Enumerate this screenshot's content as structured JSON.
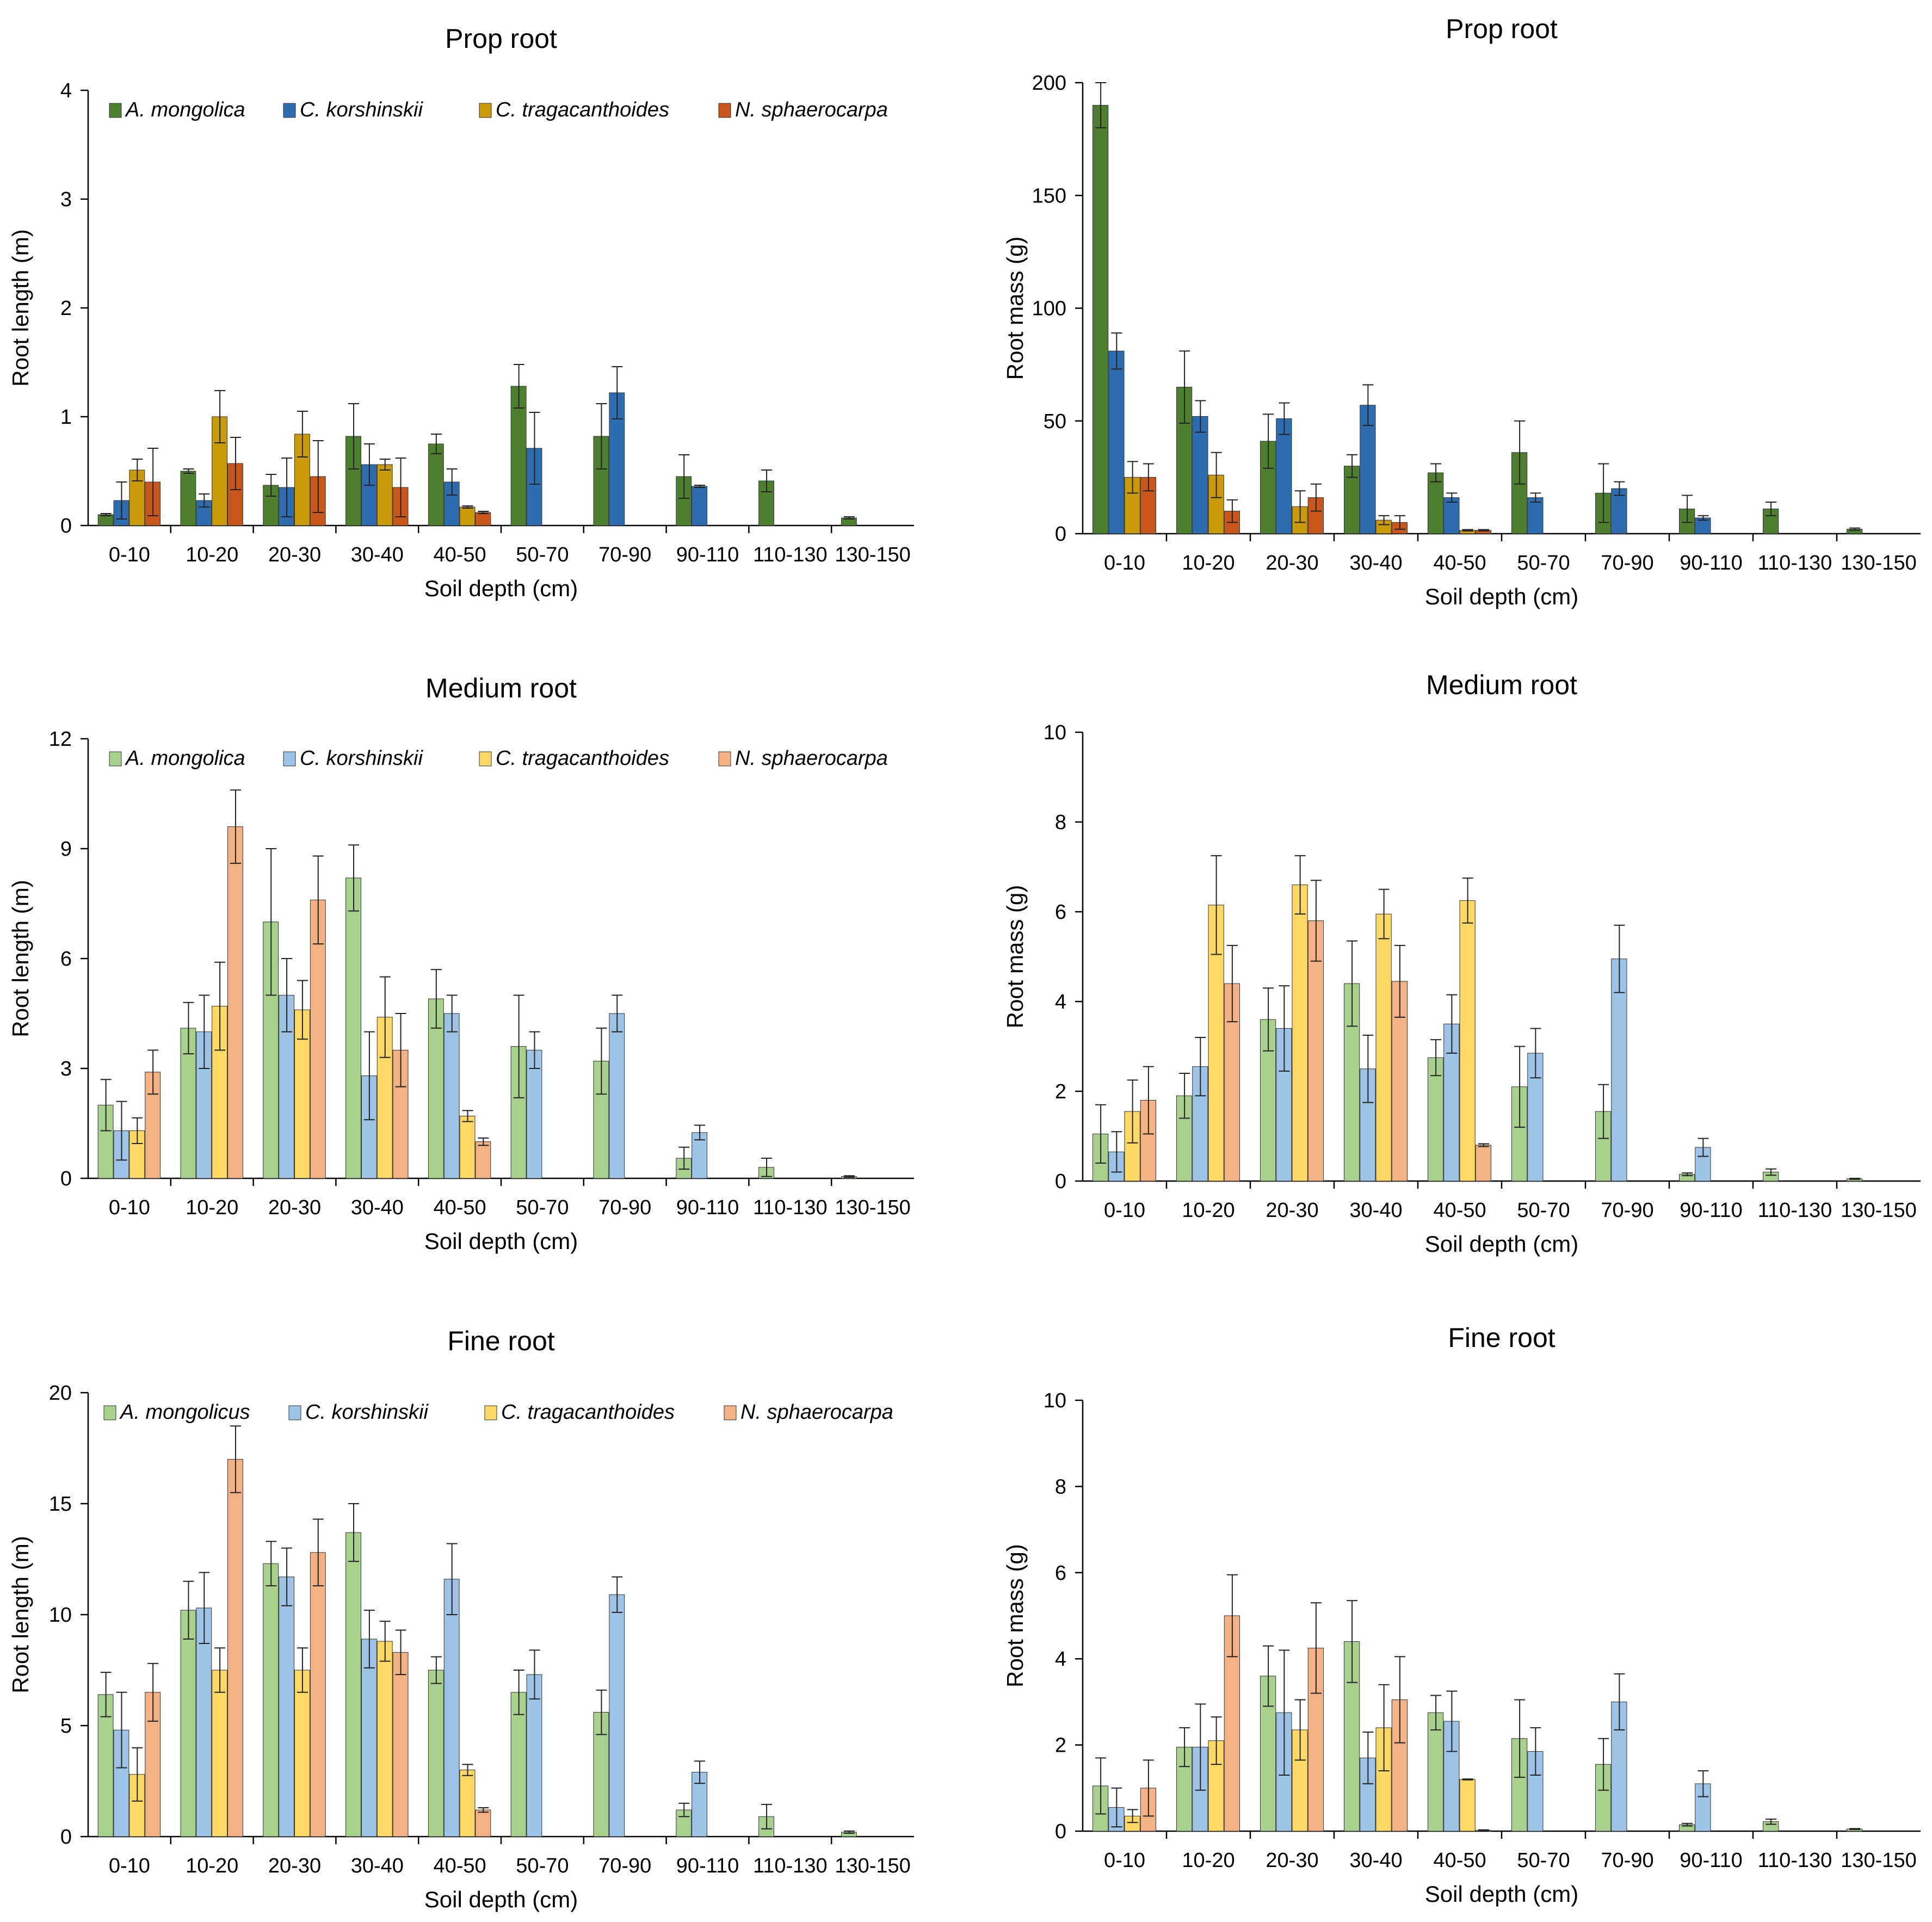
{
  "chart_data": [
    {
      "type": "bar",
      "panel": "top-left",
      "title": "Prop root",
      "xlabel": "Soil depth (cm)",
      "ylabel": "Root length (m)",
      "ylim": [
        0,
        4
      ],
      "yticks": [
        "0",
        "1",
        "2",
        "3",
        "4"
      ],
      "legend_position": "top",
      "palette": [
        "#4e7f2e",
        "#2e6cb0",
        "#c99a0a",
        "#c9561b"
      ],
      "categories": [
        "0-10",
        "10-20",
        "20-30",
        "30-40",
        "40-50",
        "50-70",
        "70-90",
        "90-110",
        "110-130",
        "130-150"
      ],
      "series": [
        {
          "name": "A. mongolica",
          "values": [
            0.1,
            0.5,
            0.37,
            0.82,
            0.75,
            1.28,
            0.82,
            0.45,
            0.41,
            0.07
          ],
          "errors": [
            0.01,
            0.02,
            0.1,
            0.3,
            0.09,
            0.2,
            0.3,
            0.2,
            0.1,
            0.01
          ]
        },
        {
          "name": "C. korshinskii",
          "values": [
            0.23,
            0.23,
            0.35,
            0.56,
            0.4,
            0.71,
            1.22,
            0.36,
            0,
            0
          ],
          "errors": [
            0.17,
            0.06,
            0.27,
            0.19,
            0.12,
            0.33,
            0.24,
            0.01,
            0,
            0
          ]
        },
        {
          "name": "C. tragacanthoides",
          "values": [
            0.51,
            1.0,
            0.84,
            0.56,
            0.17,
            0,
            0,
            0,
            0,
            0
          ],
          "errors": [
            0.1,
            0.24,
            0.21,
            0.05,
            0.01,
            0,
            0,
            0,
            0,
            0
          ]
        },
        {
          "name": "N. sphaerocarpa",
          "values": [
            0.4,
            0.57,
            0.45,
            0.35,
            0.12,
            0,
            0,
            0,
            0,
            0
          ],
          "errors": [
            0.31,
            0.24,
            0.33,
            0.27,
            0.01,
            0,
            0,
            0,
            0,
            0
          ]
        }
      ]
    },
    {
      "type": "bar",
      "panel": "top-right",
      "title": "Prop root",
      "xlabel": "Soil depth (cm)",
      "ylabel": "Root mass (g)",
      "ylim": [
        0,
        200
      ],
      "yticks": [
        "0",
        "50",
        "100",
        "150",
        "200"
      ],
      "legend_position": "none",
      "palette": [
        "#4e7f2e",
        "#2e6cb0",
        "#c99a0a",
        "#c9561b"
      ],
      "categories": [
        "0-10",
        "10-20",
        "20-30",
        "30-40",
        "40-50",
        "50-70",
        "70-90",
        "90-110",
        "110-130",
        "130-150"
      ],
      "series": [
        {
          "name": "A. mongolica",
          "values": [
            190,
            65,
            41,
            30,
            27,
            36,
            18,
            11,
            11,
            2
          ],
          "errors": [
            10,
            16,
            12,
            5,
            4,
            14,
            13,
            6,
            3,
            0.5
          ]
        },
        {
          "name": "C. korshinskii",
          "values": [
            81,
            52,
            51,
            57,
            16,
            16,
            20,
            7,
            0,
            0
          ],
          "errors": [
            8,
            7,
            7,
            9,
            2,
            2,
            3,
            1,
            0,
            0
          ]
        },
        {
          "name": "C. tragacanthoides",
          "values": [
            25,
            26,
            12,
            6,
            1.5,
            0,
            0,
            0,
            0,
            0
          ],
          "errors": [
            7,
            10,
            7,
            2,
            0.3,
            0,
            0,
            0,
            0,
            0
          ]
        },
        {
          "name": "N. sphaerocarpa",
          "values": [
            25,
            10,
            16,
            5,
            1.5,
            0,
            0,
            0,
            0,
            0
          ],
          "errors": [
            6,
            5,
            6,
            3,
            0.3,
            0,
            0,
            0,
            0,
            0
          ]
        }
      ]
    },
    {
      "type": "bar",
      "panel": "middle-left",
      "title": "Medium root",
      "xlabel": "Soil depth (cm)",
      "ylabel": "Root length (m)",
      "ylim": [
        0,
        12
      ],
      "yticks": [
        "0",
        "3",
        "6",
        "9",
        "12"
      ],
      "legend_position": "top",
      "palette": [
        "#a9d18e",
        "#9dc3e6",
        "#ffd966",
        "#f4b183"
      ],
      "categories": [
        "0-10",
        "10-20",
        "20-30",
        "30-40",
        "40-50",
        "50-70",
        "70-90",
        "90-110",
        "110-130",
        "130-150"
      ],
      "series": [
        {
          "name": "A. mongolica",
          "values": [
            2.0,
            4.1,
            7.0,
            8.2,
            4.9,
            3.6,
            3.2,
            0.55,
            0.3,
            0.05
          ],
          "errors": [
            0.7,
            0.7,
            2.0,
            0.9,
            0.8,
            1.4,
            0.9,
            0.3,
            0.25,
            0.02
          ]
        },
        {
          "name": "C. korshinskii",
          "values": [
            1.3,
            4.0,
            5.0,
            2.8,
            4.5,
            3.5,
            4.5,
            1.25,
            0,
            0
          ],
          "errors": [
            0.8,
            1.0,
            1.0,
            1.2,
            0.5,
            0.5,
            0.5,
            0.2,
            0,
            0
          ]
        },
        {
          "name": "C. tragacanthoides",
          "values": [
            1.3,
            4.7,
            4.6,
            4.4,
            1.7,
            0,
            0,
            0,
            0,
            0
          ],
          "errors": [
            0.35,
            1.2,
            0.8,
            1.1,
            0.15,
            0,
            0,
            0,
            0,
            0
          ]
        },
        {
          "name": "N. sphaerocarpa",
          "values": [
            2.9,
            9.6,
            7.6,
            3.5,
            1.0,
            0,
            0,
            0,
            0,
            0
          ],
          "errors": [
            0.6,
            1.0,
            1.2,
            1.0,
            0.1,
            0,
            0,
            0,
            0,
            0
          ]
        }
      ]
    },
    {
      "type": "bar",
      "panel": "middle-right",
      "title": "Medium root",
      "xlabel": "Soil depth (cm)",
      "ylabel": "Root mass (g)",
      "ylim": [
        0,
        10
      ],
      "yticks": [
        "0",
        "2",
        "4",
        "6",
        "8",
        "10"
      ],
      "legend_position": "none",
      "palette": [
        "#a9d18e",
        "#9dc3e6",
        "#ffd966",
        "#f4b183"
      ],
      "categories": [
        "0-10",
        "10-20",
        "20-30",
        "30-40",
        "40-50",
        "50-70",
        "70-90",
        "90-110",
        "110-130",
        "130-150"
      ],
      "series": [
        {
          "name": "A. mongolica",
          "values": [
            1.05,
            1.9,
            3.6,
            4.4,
            2.75,
            2.1,
            1.55,
            0.15,
            0.2,
            0.05
          ],
          "errors": [
            0.65,
            0.5,
            0.7,
            0.95,
            0.4,
            0.9,
            0.6,
            0.03,
            0.07,
            0.01
          ]
        },
        {
          "name": "C. korshinskii",
          "values": [
            0.65,
            2.55,
            3.4,
            2.5,
            3.5,
            2.85,
            4.95,
            0.75,
            0,
            0
          ],
          "errors": [
            0.45,
            0.65,
            0.95,
            0.75,
            0.65,
            0.55,
            0.75,
            0.2,
            0,
            0
          ]
        },
        {
          "name": "C. tragacanthoides",
          "values": [
            1.55,
            6.15,
            6.6,
            5.95,
            6.25,
            0,
            0,
            0,
            0,
            0
          ],
          "errors": [
            0.7,
            1.1,
            0.65,
            0.55,
            0.5,
            0,
            0,
            0,
            0,
            0
          ]
        },
        {
          "name": "N. sphaerocarpa",
          "values": [
            1.8,
            4.4,
            5.8,
            4.45,
            0.8,
            0,
            0,
            0,
            0,
            0
          ],
          "errors": [
            0.75,
            0.85,
            0.9,
            0.8,
            0.03,
            0,
            0,
            0,
            0,
            0
          ]
        }
      ]
    },
    {
      "type": "bar",
      "panel": "bottom-left",
      "title": "Fine root",
      "xlabel": "Soil depth (cm)",
      "ylabel": "Root length (m)",
      "ylim": [
        0,
        20
      ],
      "yticks": [
        "0",
        "5",
        "10",
        "15",
        "20"
      ],
      "legend_position": "top",
      "palette": [
        "#a9d18e",
        "#9dc3e6",
        "#ffd966",
        "#f4b183"
      ],
      "categories": [
        "0-10",
        "10-20",
        "20-30",
        "30-40",
        "40-50",
        "50-70",
        "70-90",
        "90-110",
        "110-130",
        "130-150"
      ],
      "series": [
        {
          "name": "A. mongolicus",
          "values": [
            6.4,
            10.2,
            12.3,
            13.7,
            7.5,
            6.5,
            5.6,
            1.2,
            0.9,
            0.2
          ],
          "errors": [
            1.0,
            1.3,
            1.0,
            1.3,
            0.6,
            1.0,
            1.0,
            0.3,
            0.55,
            0.05
          ]
        },
        {
          "name": "C. korshinskii",
          "values": [
            4.8,
            10.3,
            11.7,
            8.9,
            11.6,
            7.3,
            10.9,
            2.9,
            0,
            0
          ],
          "errors": [
            1.7,
            1.6,
            1.3,
            1.3,
            1.6,
            1.1,
            0.8,
            0.5,
            0,
            0
          ]
        },
        {
          "name": "C. tragacanthoides",
          "values": [
            2.8,
            7.5,
            7.5,
            8.8,
            3.0,
            0,
            0,
            0,
            0,
            0
          ],
          "errors": [
            1.2,
            1.0,
            1.0,
            0.9,
            0.25,
            0,
            0,
            0,
            0,
            0
          ]
        },
        {
          "name": "N. sphaerocarpa",
          "values": [
            6.5,
            17.0,
            12.8,
            8.3,
            1.2,
            0,
            0,
            0,
            0,
            0
          ],
          "errors": [
            1.3,
            1.5,
            1.5,
            1.0,
            0.1,
            0,
            0,
            0,
            0,
            0
          ]
        }
      ]
    },
    {
      "type": "bar",
      "panel": "bottom-right",
      "title": "Fine root",
      "xlabel": "Soil depth (cm)",
      "ylabel": "Root mass (g)",
      "ylim": [
        0,
        10
      ],
      "yticks": [
        "0",
        "2",
        "4",
        "6",
        "8",
        "10"
      ],
      "legend_position": "none",
      "palette": [
        "#a9d18e",
        "#9dc3e6",
        "#ffd966",
        "#f4b183"
      ],
      "categories": [
        "0-10",
        "10-20",
        "20-30",
        "30-40",
        "40-50",
        "50-70",
        "70-90",
        "90-110",
        "110-130",
        "130-150"
      ],
      "series": [
        {
          "name": "A. mongolica",
          "values": [
            1.05,
            1.95,
            3.6,
            4.4,
            2.75,
            2.15,
            1.55,
            0.15,
            0.22,
            0.05
          ],
          "errors": [
            0.65,
            0.45,
            0.7,
            0.95,
            0.4,
            0.9,
            0.6,
            0.03,
            0.06,
            0.01
          ]
        },
        {
          "name": "C. korshinskii",
          "values": [
            0.55,
            1.95,
            2.75,
            1.7,
            2.55,
            1.85,
            3.0,
            1.1,
            0,
            0
          ],
          "errors": [
            0.45,
            1.0,
            1.45,
            0.6,
            0.7,
            0.55,
            0.65,
            0.3,
            0,
            0
          ]
        },
        {
          "name": "C. tragacanthoides",
          "values": [
            0.35,
            2.1,
            2.35,
            2.4,
            1.2,
            0,
            0,
            0,
            0,
            0
          ],
          "errors": [
            0.15,
            0.55,
            0.7,
            1.0,
            0.01,
            0,
            0,
            0,
            0,
            0
          ]
        },
        {
          "name": "N. sphaerocarpa",
          "values": [
            1.0,
            5.0,
            4.25,
            3.05,
            0.02,
            0,
            0,
            0,
            0,
            0
          ],
          "errors": [
            0.65,
            0.95,
            1.05,
            1.0,
            0.01,
            0,
            0,
            0,
            0,
            0
          ]
        }
      ]
    }
  ]
}
